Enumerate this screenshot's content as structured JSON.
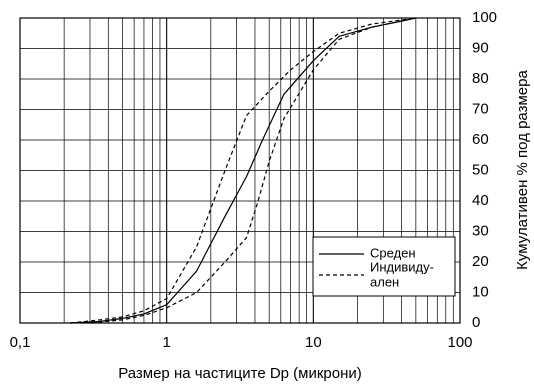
{
  "chart_data": {
    "type": "line",
    "title": "",
    "xlabel": "Размер на частиците Dp (микрони)",
    "ylabel": "Кумулативен % под размера",
    "xscale": "log",
    "xlim": [
      0.1,
      100
    ],
    "ylim": [
      0,
      100
    ],
    "x_tick_labels": [
      "0,1",
      "1",
      "10",
      "100"
    ],
    "y_tick_labels": [
      "0",
      "10",
      "20",
      "30",
      "40",
      "50",
      "60",
      "70",
      "80",
      "90",
      "100"
    ],
    "grid": true,
    "legend_position": "lower-right",
    "legend": [
      {
        "label": "Среден"
      },
      {
        "label": "Индивиду-",
        "label_line2": "ален"
      }
    ],
    "series": [
      {
        "name": "Среден",
        "style": "solid",
        "x": [
          0.22,
          0.35,
          0.5,
          0.7,
          1.0,
          1.6,
          2.5,
          3.5,
          4.5,
          6.3,
          10,
          15,
          25,
          40,
          50
        ],
        "y": [
          0,
          0.5,
          1.5,
          3,
          6,
          17,
          35,
          48,
          60,
          75,
          86,
          94,
          97,
          99,
          100
        ]
      },
      {
        "name": "Индивиду- ален",
        "style": "dashed",
        "x": [
          0.22,
          0.35,
          0.5,
          0.7,
          1.0,
          1.6,
          2.5,
          3.5,
          5.0,
          7.0,
          10,
          15,
          25,
          50
        ],
        "y": [
          0,
          1,
          2,
          4,
          8,
          25,
          50,
          68,
          76,
          83,
          89,
          95,
          98,
          100
        ]
      },
      {
        "name": "Индивиду- ален",
        "style": "dashed",
        "x": [
          0.22,
          0.35,
          0.5,
          0.7,
          1.0,
          1.6,
          2.5,
          3.5,
          4.2,
          5.0,
          6.3,
          10,
          15,
          25,
          50
        ],
        "y": [
          0,
          0.3,
          1,
          2.5,
          5,
          10,
          20,
          28,
          40,
          53,
          67,
          83,
          93,
          97,
          100
        ]
      }
    ]
  }
}
